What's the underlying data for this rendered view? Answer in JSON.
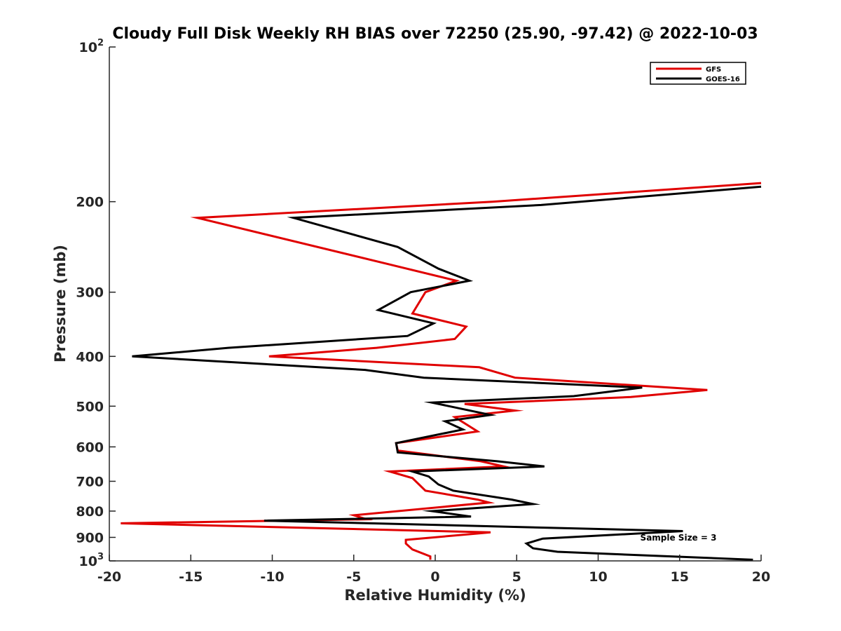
{
  "chart_data": {
    "type": "line",
    "title": "Cloudy Full Disk Weekly RH BIAS over 72250 (25.90, -97.42) @ 2022-10-03",
    "xlabel": "Relative Humidity (%)",
    "ylabel": "Pressure (mb)",
    "xlim": [
      -20,
      20
    ],
    "ylim": [
      100,
      1000
    ],
    "y_scale": "log",
    "y_reversed": true,
    "grid": false,
    "legend_position": "top-right",
    "x_ticks": [
      -20,
      -15,
      -10,
      -5,
      0,
      5,
      10,
      15,
      20
    ],
    "x_tick_labels": [
      "-20",
      "-15",
      "-10",
      "-5",
      "0",
      "5",
      "10",
      "15",
      "20"
    ],
    "y_ticks": [
      {
        "value": 100,
        "base": "10",
        "exp": "2"
      },
      {
        "value": 200,
        "label": "200"
      },
      {
        "value": 300,
        "label": "300"
      },
      {
        "value": 400,
        "label": "400"
      },
      {
        "value": 500,
        "label": "500"
      },
      {
        "value": 600,
        "label": "600"
      },
      {
        "value": 700,
        "label": "700"
      },
      {
        "value": 800,
        "label": "800"
      },
      {
        "value": 900,
        "label": "900"
      },
      {
        "value": 1000,
        "base": "10",
        "exp": "3"
      }
    ],
    "annotation": "Sample Size = 3",
    "series": [
      {
        "name": "GFS",
        "color": "#e00000",
        "points": [
          [
            20.0,
            184
          ],
          [
            3.5,
            200
          ],
          [
            -14.6,
            215
          ],
          [
            -2.8,
            265
          ],
          [
            1.3,
            285
          ],
          [
            -0.6,
            300
          ],
          [
            -1.4,
            330
          ],
          [
            1.9,
            350
          ],
          [
            1.2,
            370
          ],
          [
            -3.6,
            385
          ],
          [
            -10.2,
            400
          ],
          [
            2.7,
            420
          ],
          [
            4.9,
            440
          ],
          [
            16.7,
            465
          ],
          [
            12.0,
            480
          ],
          [
            1.8,
            495
          ],
          [
            4.9,
            510
          ],
          [
            1.2,
            525
          ],
          [
            2.6,
            560
          ],
          [
            -2.4,
            590
          ],
          [
            -2.3,
            610
          ],
          [
            2.8,
            640
          ],
          [
            4.2,
            655
          ],
          [
            -2.8,
            670
          ],
          [
            -1.4,
            690
          ],
          [
            -0.6,
            730
          ],
          [
            2.6,
            760
          ],
          [
            3.3,
            770
          ],
          [
            -5.0,
            815
          ],
          [
            -4.2,
            830
          ],
          [
            -19.3,
            845
          ],
          [
            3.4,
            880
          ],
          [
            -1.8,
            910
          ],
          [
            -1.8,
            925
          ],
          [
            -1.4,
            950
          ],
          [
            -0.3,
            980
          ],
          [
            -0.3,
            995
          ]
        ]
      },
      {
        "name": "GOES-16",
        "color": "#000000",
        "points": [
          [
            20.0,
            187
          ],
          [
            6.5,
            203
          ],
          [
            -8.7,
            215
          ],
          [
            -2.3,
            245
          ],
          [
            0.2,
            270
          ],
          [
            2.1,
            285
          ],
          [
            -1.5,
            300
          ],
          [
            -3.5,
            325
          ],
          [
            -0.1,
            345
          ],
          [
            -1.7,
            365
          ],
          [
            -12.7,
            385
          ],
          [
            -18.6,
            400
          ],
          [
            -4.3,
            425
          ],
          [
            -0.7,
            440
          ],
          [
            12.7,
            460
          ],
          [
            8.5,
            478
          ],
          [
            -0.2,
            492
          ],
          [
            3.4,
            520
          ],
          [
            0.6,
            535
          ],
          [
            1.7,
            555
          ],
          [
            -2.4,
            590
          ],
          [
            -2.3,
            615
          ],
          [
            3.8,
            640
          ],
          [
            6.7,
            655
          ],
          [
            -1.4,
            670
          ],
          [
            -0.4,
            685
          ],
          [
            0.2,
            710
          ],
          [
            1.1,
            730
          ],
          [
            4.7,
            760
          ],
          [
            6.0,
            775
          ],
          [
            -0.2,
            800
          ],
          [
            2.2,
            820
          ],
          [
            -10.5,
            835
          ],
          [
            15.2,
            875
          ],
          [
            6.6,
            905
          ],
          [
            5.6,
            925
          ],
          [
            6.0,
            945
          ],
          [
            7.5,
            960
          ],
          [
            19.5,
            995
          ]
        ]
      }
    ]
  }
}
